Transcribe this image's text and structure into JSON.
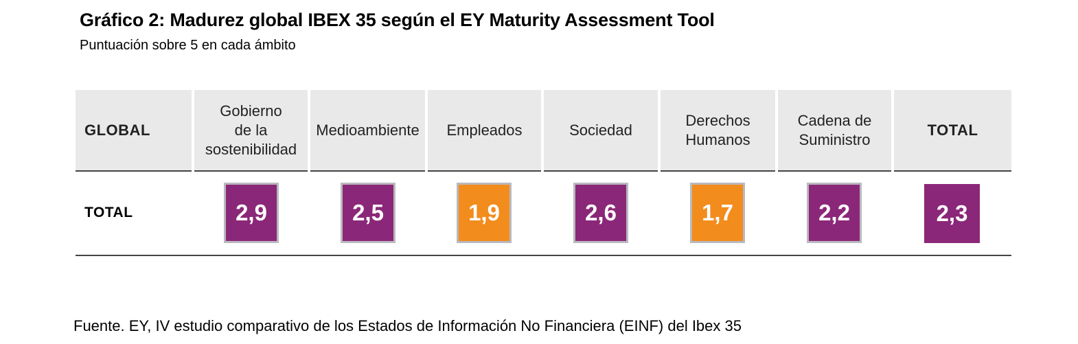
{
  "title": "Gráfico 2: Madurez global IBEX 35 según el EY Maturity Assessment Tool",
  "subtitle": "Puntuación sobre 5 en cada ámbito",
  "chart_data": {
    "type": "table",
    "title": "Gráfico 2: Madurez global IBEX 35 según el EY Maturity Assessment Tool",
    "subtitle": "Puntuación sobre 5 en cada ámbito",
    "row_header": "GLOBAL",
    "columns": [
      "Gobierno\nde la\nsostenibilidad",
      "Medioambiente",
      "Empleados",
      "Sociedad",
      "Derechos\nHumanos",
      "Cadena de\nSuministro",
      "TOTAL"
    ],
    "rows": [
      {
        "label": "TOTAL",
        "values": [
          "2,9",
          "2,5",
          "1,9",
          "2,6",
          "1,7",
          "2,2",
          "2,3"
        ],
        "colors": [
          "#8b2778",
          "#8b2778",
          "#f28c1c",
          "#8b2778",
          "#f28c1c",
          "#8b2778",
          "#8b2778"
        ]
      }
    ],
    "max_score": 5
  },
  "source": "Fuente. EY, IV estudio comparativo de los Estados de Información No Financiera (EINF) del Ibex 35"
}
